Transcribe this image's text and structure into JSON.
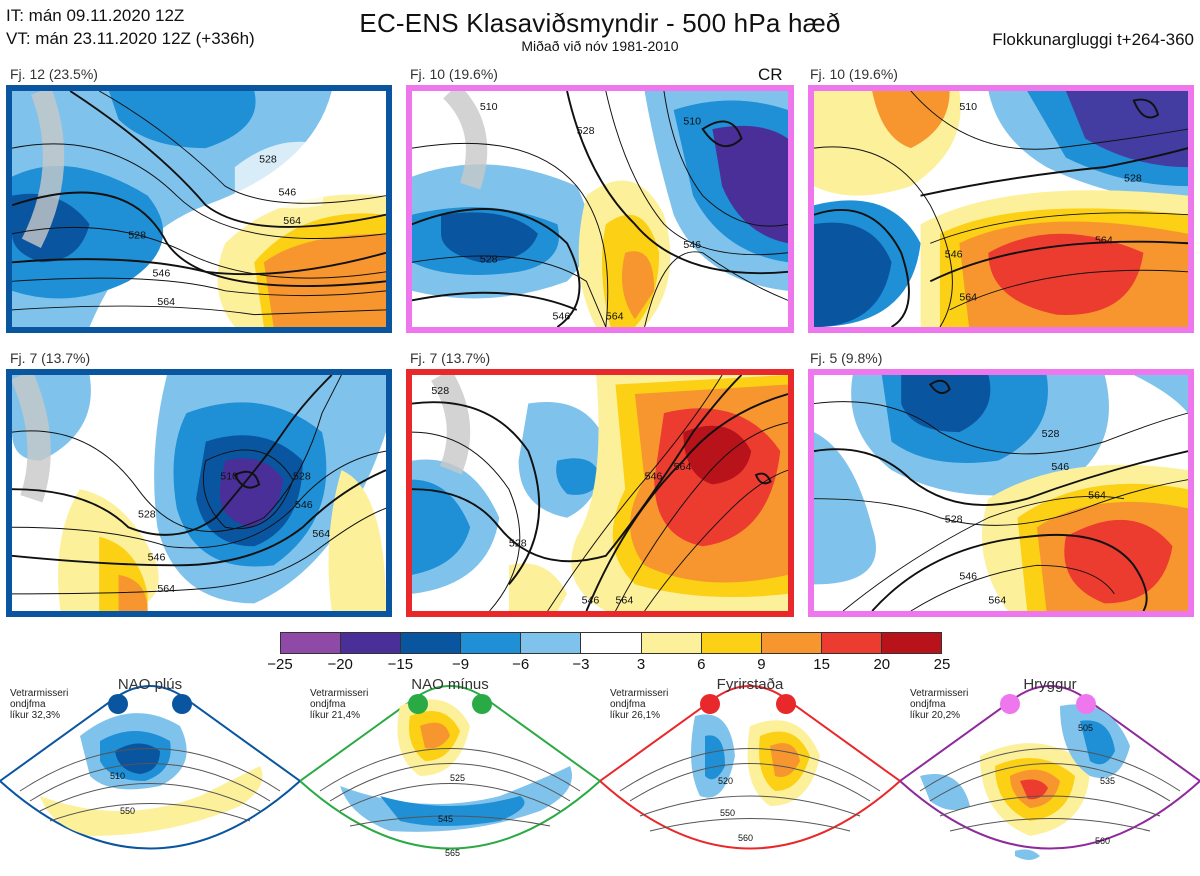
{
  "header": {
    "line1": "IT: mán 09.11.2020 12Z",
    "line2": "VT: mán 23.11.2020 12Z  (+336h)",
    "title": "EC-ENS Klasaviðsmyndir - 500 hPa hæð",
    "subtitle": "Miðað við nóv 1981-2010",
    "window": "Flokkunargluggi t+264-360"
  },
  "panels": [
    {
      "label": "Fj. 12 (23.5%)",
      "border": "#0a55a0"
    },
    {
      "label": "Fj. 10 (19.6%)",
      "border": "#ee77ee",
      "tag": "CR"
    },
    {
      "label": "Fj. 10 (19.6%)",
      "border": "#ee77ee"
    },
    {
      "label": "Fj. 7 (13.7%)",
      "border": "#0a55a0"
    },
    {
      "label": "Fj. 7 (13.7%)",
      "border": "#e8282a"
    },
    {
      "label": "Fj. 5 (9.8%)",
      "border": "#ee77ee"
    }
  ],
  "colorbar": {
    "ticks": [
      "−25",
      "−20",
      "−15",
      "−9",
      "−6",
      "−3",
      "3",
      "6",
      "9",
      "15",
      "20",
      "25"
    ],
    "colors": [
      "#8e4aa6",
      "#4a2f98",
      "#0a55a0",
      "#1f8fd6",
      "#7fc3ec",
      "#ffffff",
      "#fdf09a",
      "#fbd015",
      "#f7962f",
      "#ec3b2f",
      "#b8121a"
    ]
  },
  "regimes": [
    {
      "name": "NAO plús",
      "note": "Vetrarmisseri\nondjfma\nlíkur 32,3%",
      "color": "#0a55a0",
      "contours": [
        "510",
        "550"
      ]
    },
    {
      "name": "NAO mínus",
      "note": "Vetrarmisseri\nondjfma\nlíkur 21,4%",
      "color": "#2aaa44",
      "contours": [
        "525",
        "545",
        "565"
      ]
    },
    {
      "name": "Fyrirstaða",
      "note": "Vetrarmisseri\nondjfma\nlíkur 26,1%",
      "color": "#e8282a",
      "contours": [
        "520",
        "550",
        "560"
      ]
    },
    {
      "name": "Hryggur",
      "note": "Vetrarmisseri\nondjfma\nlíkur 20,2%",
      "color": "#ee77ee",
      "contours": [
        "505",
        "535",
        "560"
      ]
    }
  ],
  "contour_labels": {
    "p1": [
      "528",
      "528",
      "546",
      "546",
      "564",
      "564"
    ],
    "p2": [
      "510",
      "528",
      "510",
      "528",
      "546",
      "546",
      "564"
    ],
    "p3": [
      "510",
      "528",
      "546",
      "564",
      "564"
    ],
    "p4": [
      "510",
      "528",
      "546",
      "564",
      "528",
      "546",
      "564"
    ],
    "p5": [
      "528",
      "546",
      "564",
      "528",
      "546",
      "564"
    ],
    "p6": [
      "528",
      "546",
      "564",
      "528",
      "546",
      "564"
    ]
  }
}
